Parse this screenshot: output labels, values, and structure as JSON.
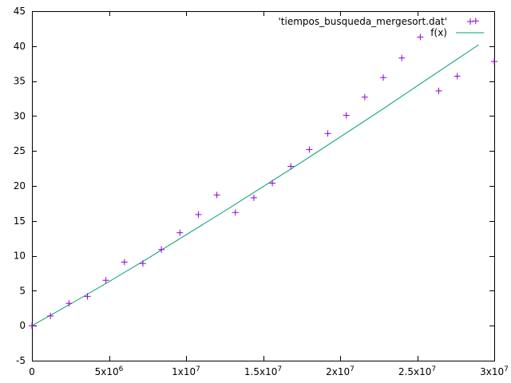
{
  "chart_data": {
    "type": "scatter",
    "title": "",
    "xlabel": "",
    "ylabel": "",
    "xlim": [
      0,
      30000000
    ],
    "ylim": [
      -5,
      45
    ],
    "grid": false,
    "legend_position": "top-right",
    "x_ticks": [
      {
        "value": 0,
        "base": "0",
        "exp": ""
      },
      {
        "value": 5000000,
        "base": "5x10",
        "exp": "6"
      },
      {
        "value": 10000000,
        "base": "1x10",
        "exp": "7"
      },
      {
        "value": 15000000,
        "base": "1.5x10",
        "exp": "7"
      },
      {
        "value": 20000000,
        "base": "2x10",
        "exp": "7"
      },
      {
        "value": 25000000,
        "base": "2.5x10",
        "exp": "7"
      },
      {
        "value": 30000000,
        "base": "3x10",
        "exp": "7"
      }
    ],
    "y_ticks": [
      {
        "value": -5,
        "label": "-5"
      },
      {
        "value": 0,
        "label": "0"
      },
      {
        "value": 5,
        "label": "5"
      },
      {
        "value": 10,
        "label": "10"
      },
      {
        "value": 15,
        "label": "15"
      },
      {
        "value": 20,
        "label": "20"
      },
      {
        "value": 25,
        "label": "25"
      },
      {
        "value": 30,
        "label": "30"
      },
      {
        "value": 35,
        "label": "35"
      },
      {
        "value": 40,
        "label": "40"
      },
      {
        "value": 45,
        "label": "45"
      }
    ],
    "series": [
      {
        "name": "'tiempos_busqueda_mergesort.dat'",
        "style": "points",
        "color": "#9400d3",
        "x": [
          0,
          1200000,
          2400000,
          3600000,
          4800000,
          6000000,
          7200000,
          8400000,
          9600000,
          10800000,
          12000000,
          13200000,
          14400000,
          15600000,
          16800000,
          18000000,
          19200000,
          20400000,
          21600000,
          22800000,
          24000000,
          25200000,
          26400000,
          27600000,
          28800000,
          30000000
        ],
        "y": [
          0,
          1.4,
          3.2,
          4.2,
          6.5,
          9.1,
          8.9,
          10.9,
          13.3,
          15.9,
          18.7,
          16.2,
          18.3,
          20.4,
          22.8,
          25.2,
          27.5,
          30.1,
          32.7,
          35.5,
          38.3,
          41.3,
          33.6,
          35.7,
          43.6,
          37.8
        ]
      },
      {
        "name": "f(x)",
        "style": "line",
        "color": "#009e73",
        "x": [
          0,
          2500000,
          5000000,
          7500000,
          10000000,
          12500000,
          15000000,
          17500000,
          20000000,
          22500000,
          25000000,
          27500000,
          29000000
        ],
        "y": [
          0,
          3.1,
          6.3,
          9.6,
          13.0,
          16.4,
          19.9,
          23.4,
          27.0,
          30.6,
          34.3,
          38.0,
          40.2
        ]
      }
    ]
  }
}
